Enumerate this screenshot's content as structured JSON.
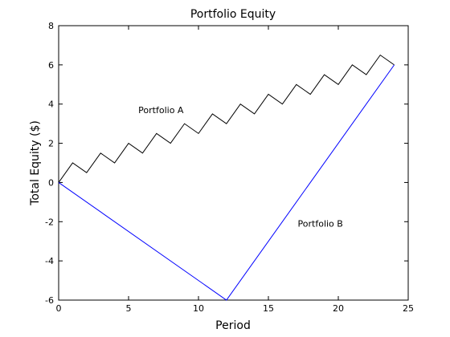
{
  "chart_data": {
    "type": "line",
    "title": "Portfolio Equity",
    "xlabel": "Period",
    "ylabel": "Total Equity ($)",
    "xlim": [
      0,
      25
    ],
    "ylim": [
      -6,
      8
    ],
    "xticks": [
      0,
      5,
      10,
      15,
      20,
      25
    ],
    "yticks": [
      -6,
      -4,
      -2,
      0,
      2,
      4,
      6,
      8
    ],
    "grid": false,
    "legend": "none",
    "series": [
      {
        "color": "#000000",
        "x": [
          0,
          1,
          2,
          3,
          4,
          5,
          6,
          7,
          8,
          9,
          10,
          11,
          12,
          13,
          14,
          15,
          16,
          17,
          18,
          19,
          20,
          21,
          22,
          23,
          24
        ],
        "y": [
          0,
          1,
          0.5,
          1.5,
          1,
          2,
          1.5,
          2.5,
          2,
          3,
          2.5,
          3.5,
          3,
          4,
          3.5,
          4.5,
          4,
          5,
          4.5,
          5.5,
          5,
          6,
          5.5,
          6.5,
          6
        ]
      },
      {
        "color": "#0000ff",
        "x": [
          0,
          12,
          24
        ],
        "y": [
          0,
          -6,
          6
        ]
      }
    ],
    "annotations": [
      {
        "text": "Portfolio A",
        "x": 5.7,
        "y": 3.7
      },
      {
        "text": "Portfolio B",
        "x": 17.1,
        "y": -2.1
      }
    ]
  }
}
